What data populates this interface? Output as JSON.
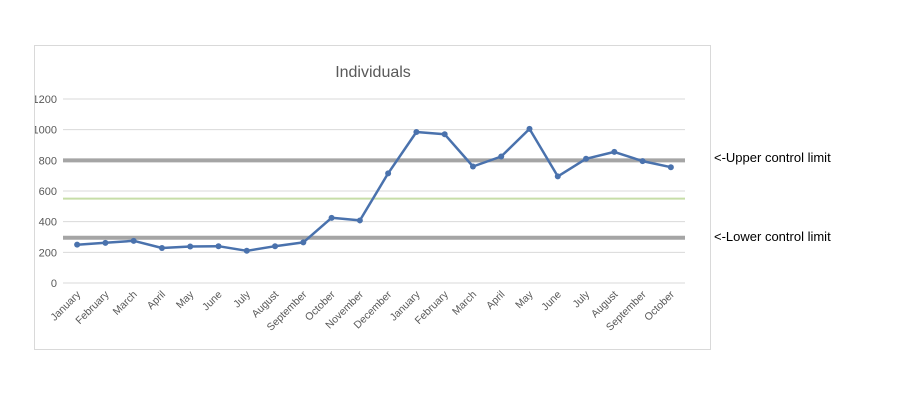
{
  "chart_data": {
    "type": "line",
    "title": "Individuals",
    "xlabel": "",
    "ylabel": "",
    "categories": [
      "January",
      "February",
      "March",
      "April",
      "May",
      "June",
      "July",
      "August",
      "September",
      "October",
      "November",
      "December",
      "January",
      "February",
      "March",
      "April",
      "May",
      "June",
      "July",
      "August",
      "September",
      "October"
    ],
    "series": [
      {
        "values": [
          250,
          262,
          275,
          228,
          238,
          240,
          210,
          240,
          265,
          425,
          408,
          715,
          985,
          970,
          760,
          825,
          1005,
          695,
          810,
          855,
          795,
          755
        ]
      }
    ],
    "reference_lines": [
      {
        "value": 800,
        "label": "<-Upper control limit"
      },
      {
        "value": 550
      },
      {
        "value": 295,
        "label": "<-Lower control limit"
      }
    ],
    "yticks": [
      "0",
      "200",
      "400",
      "600",
      "800",
      "1000",
      "1200"
    ],
    "ylim": [
      0,
      1200
    ],
    "grid": true,
    "legend": "none"
  },
  "colors": {
    "series": "#4a72ad",
    "control_limit": "#a5a5a5",
    "center_line": "#c6dea8",
    "grid": "#d9d9d9",
    "axis_text": "#595959",
    "title": "#595959"
  }
}
